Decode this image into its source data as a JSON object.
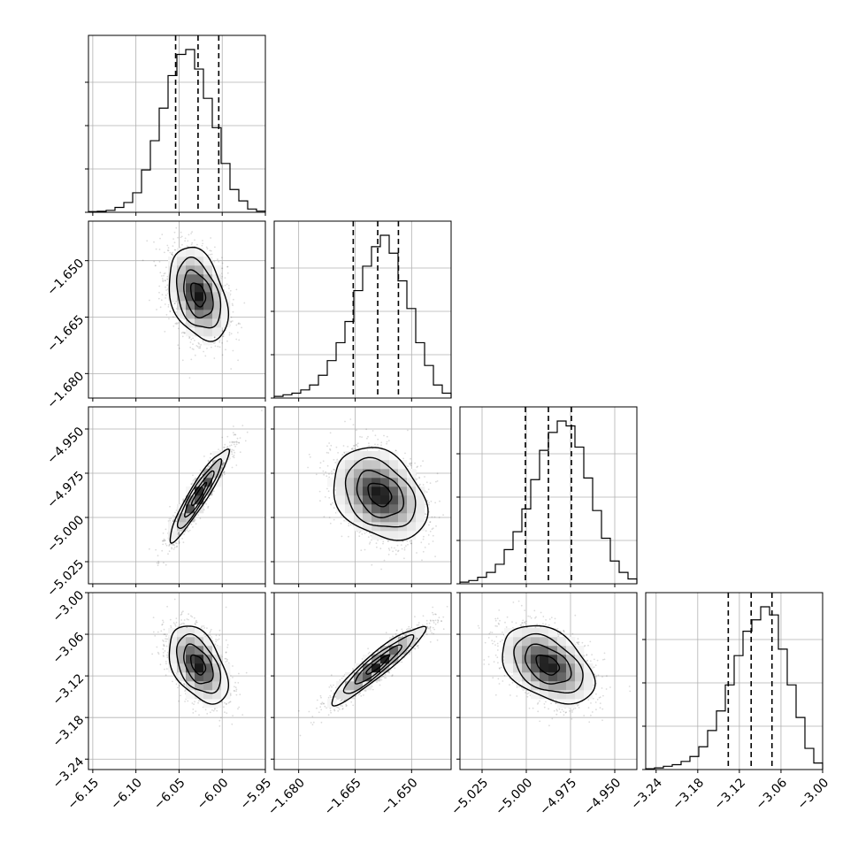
{
  "chart_data": {
    "type": "corner",
    "grid": true,
    "parameters": [
      {
        "ticks": [
          "−6.15",
          "−6.10",
          "−6.05",
          "−6.00",
          "−5.95"
        ],
        "tick_values": [
          -6.15,
          -6.1,
          -6.05,
          -6.0,
          -5.95
        ],
        "range": [
          -6.155,
          -5.95
        ],
        "median": -6.028,
        "q16": -6.054,
        "q84": -6.004
      },
      {
        "ticks": [
          "−1.680",
          "−1.665",
          "−1.650"
        ],
        "tick_values": [
          -1.68,
          -1.665,
          -1.65
        ],
        "range": [
          -1.6865,
          -1.6395
        ],
        "median": -1.659,
        "q16": -1.6655,
        "q84": -1.6535
      },
      {
        "ticks": [
          "−5.025",
          "−5.000",
          "−4.975",
          "−4.950"
        ],
        "tick_values": [
          -5.025,
          -5.0,
          -4.975,
          -4.95
        ],
        "range": [
          -5.0375,
          -4.9375
        ],
        "median": -4.9875,
        "q16": -5.0005,
        "q84": -4.9745
      },
      {
        "ticks": [
          "−3.24",
          "−3.18",
          "−3.12",
          "−3.06",
          "−3.00"
        ],
        "tick_values": [
          -3.24,
          -3.18,
          -3.12,
          -3.06,
          -3.0
        ],
        "range": [
          -3.255,
          -3.0
        ],
        "median": -3.103,
        "q16": -3.136,
        "q84": -3.073
      }
    ],
    "histograms": [
      [
        0.004,
        0.006,
        0.012,
        0.03,
        0.06,
        0.12,
        0.26,
        0.44,
        0.64,
        0.84,
        0.97,
        1.0,
        0.88,
        0.7,
        0.52,
        0.3,
        0.14,
        0.07,
        0.02,
        0.007
      ],
      [
        0.01,
        0.02,
        0.03,
        0.05,
        0.08,
        0.14,
        0.23,
        0.34,
        0.47,
        0.66,
        0.81,
        0.93,
        1.0,
        0.89,
        0.72,
        0.55,
        0.34,
        0.2,
        0.08,
        0.03
      ],
      [
        0.01,
        0.02,
        0.04,
        0.07,
        0.12,
        0.21,
        0.32,
        0.46,
        0.64,
        0.82,
        0.93,
        1.0,
        0.97,
        0.84,
        0.65,
        0.45,
        0.28,
        0.14,
        0.07,
        0.03
      ],
      [
        0.005,
        0.01,
        0.02,
        0.03,
        0.05,
        0.08,
        0.14,
        0.24,
        0.36,
        0.52,
        0.7,
        0.85,
        0.92,
        1.0,
        0.95,
        0.74,
        0.52,
        0.32,
        0.13,
        0.04
      ]
    ],
    "pairs": [
      {
        "row": 1,
        "col": 0,
        "mean": [
          -6.028,
          -1.659
        ],
        "sd": [
          0.017,
          0.0062
        ],
        "rho": -0.35
      },
      {
        "row": 2,
        "col": 0,
        "mean": [
          -6.027,
          -4.987
        ],
        "sd": [
          0.017,
          0.013
        ],
        "rho": 0.93
      },
      {
        "row": 2,
        "col": 1,
        "mean": [
          -1.6585,
          -4.987
        ],
        "sd": [
          0.0062,
          0.013
        ],
        "rho": -0.3
      },
      {
        "row": 3,
        "col": 0,
        "mean": [
          -6.028,
          -3.104
        ],
        "sd": [
          0.017,
          0.028
        ],
        "rho": -0.45
      },
      {
        "row": 3,
        "col": 1,
        "mean": [
          -1.659,
          -3.104
        ],
        "sd": [
          0.0062,
          0.028
        ],
        "rho": 0.93
      },
      {
        "row": 3,
        "col": 2,
        "mean": [
          -4.988,
          -3.104
        ],
        "sd": [
          0.013,
          0.028
        ],
        "rho": -0.4
      }
    ]
  }
}
